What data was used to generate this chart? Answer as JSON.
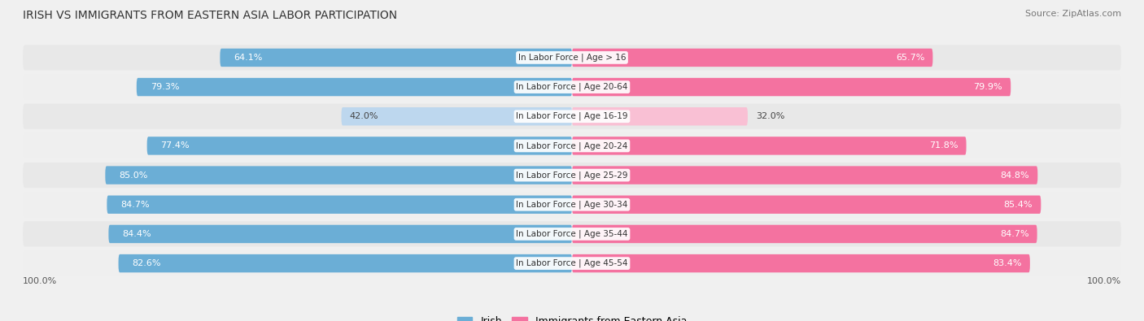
{
  "title": "IRISH VS IMMIGRANTS FROM EASTERN ASIA LABOR PARTICIPATION",
  "source": "Source: ZipAtlas.com",
  "categories": [
    "In Labor Force | Age > 16",
    "In Labor Force | Age 20-64",
    "In Labor Force | Age 16-19",
    "In Labor Force | Age 20-24",
    "In Labor Force | Age 25-29",
    "In Labor Force | Age 30-34",
    "In Labor Force | Age 35-44",
    "In Labor Force | Age 45-54"
  ],
  "irish_values": [
    64.1,
    79.3,
    42.0,
    77.4,
    85.0,
    84.7,
    84.4,
    82.6
  ],
  "eastern_asia_values": [
    65.7,
    79.9,
    32.0,
    71.8,
    84.8,
    85.4,
    84.7,
    83.4
  ],
  "irish_color": "#6baed6",
  "irish_color_light": "#bdd7ee",
  "eastern_asia_color": "#f472a0",
  "eastern_asia_color_light": "#f9c0d4",
  "row_bg_even": "#e8e8e8",
  "row_bg_odd": "#efefef",
  "background_color": "#f0f0f0",
  "bar_height": 0.62,
  "max_value": 100.0,
  "legend_irish": "Irish",
  "legend_eastern": "Immigrants from Eastern Asia",
  "bottom_label": "100.0%",
  "title_fontsize": 10,
  "source_fontsize": 8,
  "label_fontsize": 8,
  "cat_fontsize": 7.5
}
